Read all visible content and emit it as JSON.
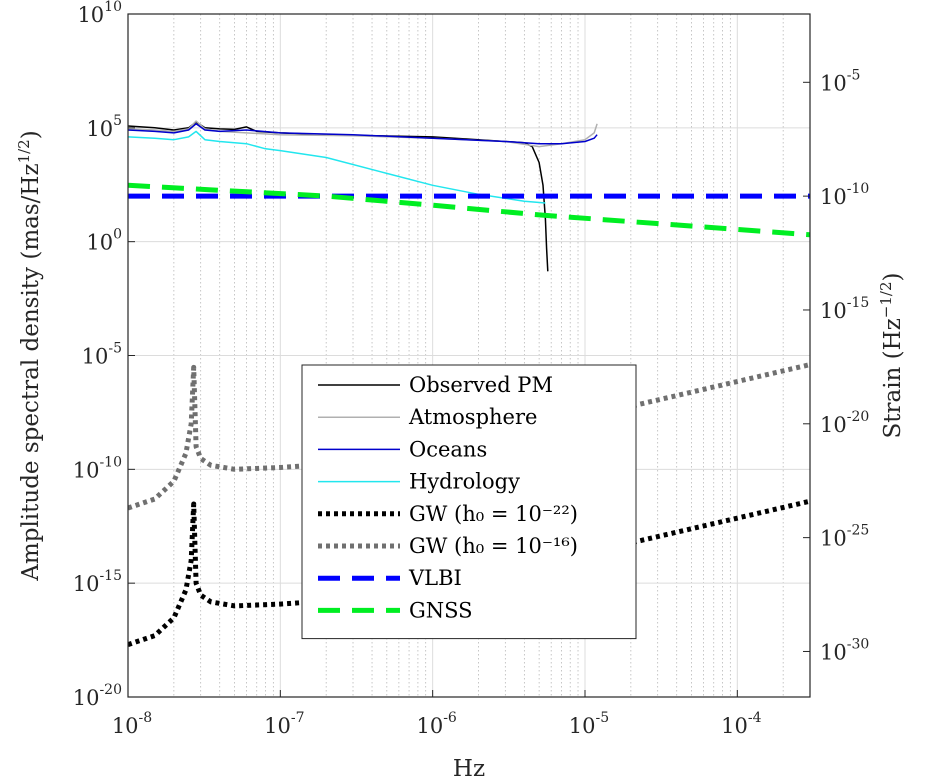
{
  "chart_data": {
    "type": "line",
    "title": "",
    "xlabel": "Hz",
    "ylabel": "Amplitude spectral density (mas/Hz^(1/2))",
    "ylabel_parts": [
      "Amplitude spectral density (mas/Hz",
      "1/2",
      ")"
    ],
    "y2label": "Strain (Hz^(-1/2))",
    "y2label_parts": [
      "Strain (Hz",
      "−1/2",
      ")"
    ],
    "x_scale": "log",
    "y_scale": "log",
    "xlim": [
      1e-08,
      0.0003
    ],
    "ylim": [
      1e-20,
      10000000000.0
    ],
    "y2lim": [
      1e-32,
      0.01
    ],
    "grid": true,
    "legend_position": "lower-center",
    "x_ticks": [
      {
        "base": "10",
        "exp": "-8",
        "value": 1e-08
      },
      {
        "base": "10",
        "exp": "-7",
        "value": 1e-07
      },
      {
        "base": "10",
        "exp": "-6",
        "value": 1e-06
      },
      {
        "base": "10",
        "exp": "-5",
        "value": 1e-05
      },
      {
        "base": "10",
        "exp": "-4",
        "value": 0.0001
      }
    ],
    "y_ticks": [
      {
        "base": "10",
        "exp": "-20",
        "value": 1e-20
      },
      {
        "base": "10",
        "exp": "-15",
        "value": 1e-15
      },
      {
        "base": "10",
        "exp": "-10",
        "value": 1e-10
      },
      {
        "base": "10",
        "exp": "-5",
        "value": 1e-05
      },
      {
        "base": "10",
        "exp": "0",
        "value": 1
      },
      {
        "base": "10",
        "exp": "5",
        "value": 100000.0
      },
      {
        "base": "10",
        "exp": "10",
        "value": 10000000000.0
      }
    ],
    "y2_ticks": [
      {
        "base": "10",
        "exp": "-30",
        "value": 1e-30
      },
      {
        "base": "10",
        "exp": "-25",
        "value": 1e-25
      },
      {
        "base": "10",
        "exp": "-20",
        "value": 1e-20
      },
      {
        "base": "10",
        "exp": "-15",
        "value": 1e-15
      },
      {
        "base": "10",
        "exp": "-10",
        "value": 1e-10
      },
      {
        "base": "10",
        "exp": "-5",
        "value": 1e-05
      }
    ],
    "series": [
      {
        "name": "Observed PM",
        "color": "#000000",
        "style": "solid",
        "width": 1.5,
        "x": [
          1e-08,
          1.5e-08,
          2e-08,
          2.5e-08,
          2.8e-08,
          3.2e-08,
          4e-08,
          5e-08,
          6e-08,
          7e-08,
          1e-07,
          2e-07,
          4e-07,
          1e-06,
          2e-06,
          3e-06,
          4e-06,
          4.5e-06,
          5e-06,
          5.3e-06,
          5.5e-06,
          5.6e-06,
          5.7e-06
        ],
        "y": [
          120000,
          100000,
          80000,
          100000,
          180000,
          100000,
          90000,
          85000,
          110000,
          70000,
          60000,
          50000,
          45000,
          40000,
          30000,
          25000,
          22000,
          15000,
          3000,
          300,
          10,
          0.5,
          0.05
        ]
      },
      {
        "name": "Atmosphere",
        "color": "#b0b0b0",
        "style": "solid",
        "width": 1.5,
        "x": [
          1e-08,
          1.5e-08,
          2e-08,
          2.5e-08,
          2.8e-08,
          3.2e-08,
          4e-08,
          6e-08,
          1e-07,
          3e-07,
          1e-06,
          3e-06,
          5e-06,
          7e-06,
          1e-05,
          1.15e-05,
          1.2e-05
        ],
        "y": [
          90000,
          80000,
          70000,
          90000,
          200000,
          90000,
          70000,
          60000,
          50000,
          45000,
          35000,
          25000,
          15000,
          20000,
          30000,
          60000,
          150000
        ]
      },
      {
        "name": "Oceans",
        "color": "#0000cc",
        "style": "solid",
        "width": 1.5,
        "x": [
          1e-08,
          1.5e-08,
          2e-08,
          2.5e-08,
          2.8e-08,
          3.2e-08,
          4e-08,
          6e-08,
          1e-07,
          3e-07,
          1e-06,
          3e-06,
          5e-06,
          7e-06,
          1e-05,
          1.15e-05,
          1.2e-05
        ],
        "y": [
          80000,
          70000,
          60000,
          80000,
          150000,
          80000,
          70000,
          80000,
          60000,
          50000,
          35000,
          25000,
          20000,
          20000,
          25000,
          35000,
          50000
        ]
      },
      {
        "name": "Hydrology",
        "color": "#22e6ee",
        "style": "solid",
        "width": 1.5,
        "x": [
          1e-08,
          1.5e-08,
          2e-08,
          2.5e-08,
          2.8e-08,
          3.2e-08,
          4e-08,
          6e-08,
          8e-08,
          1e-07,
          2e-07,
          5e-07,
          1e-06,
          2e-06,
          4e-06,
          5.5e-06
        ],
        "y": [
          40000,
          35000,
          30000,
          40000,
          70000,
          30000,
          25000,
          20000,
          12000,
          10000,
          5000,
          1000,
          300,
          120,
          60,
          50
        ]
      },
      {
        "name": "GW (h₀ = 10⁻²²)",
        "color": "#000000",
        "style": "dotted",
        "width": 5,
        "x": [
          1e-08,
          1.5e-08,
          2e-08,
          2.4e-08,
          2.6e-08,
          2.7e-08,
          2.8e-08,
          3e-08,
          3.5e-08,
          5e-08,
          1e-07,
          3e-07,
          1e-06,
          1e-05,
          0.0003
        ],
        "y": [
          2e-18,
          5e-18,
          3e-17,
          5e-16,
          1e-14,
          3e-12,
          1e-15,
          3e-16,
          1.5e-16,
          1e-16,
          1.2e-16,
          2e-16,
          4e-16,
          2e-14,
          4e-12
        ]
      },
      {
        "name": "GW (h₀ = 10⁻¹⁶)",
        "color": "#707070",
        "style": "dotted",
        "width": 5,
        "x": [
          1e-08,
          1.5e-08,
          2e-08,
          2.4e-08,
          2.6e-08,
          2.7e-08,
          2.8e-08,
          3e-08,
          3.5e-08,
          5e-08,
          1e-07,
          3e-07,
          1e-06,
          1e-05,
          0.0003
        ],
        "y": [
          2e-12,
          5e-12,
          3e-11,
          5e-10,
          1e-08,
          3e-06,
          1e-09,
          3e-10,
          1.5e-10,
          1e-10,
          1.2e-10,
          2e-10,
          4e-10,
          2e-08,
          4e-06
        ]
      },
      {
        "name": "VLBI",
        "color": "#0000ff",
        "style": "dashed",
        "width": 5,
        "x": [
          1e-08,
          0.0003
        ],
        "y": [
          100,
          100
        ]
      },
      {
        "name": "GNSS",
        "color": "#00ee22",
        "style": "dashed",
        "width": 5,
        "x": [
          1e-08,
          2e-07,
          1e-06,
          5e-06,
          0.0003
        ],
        "y": [
          300,
          100,
          40,
          15,
          2
        ]
      }
    ],
    "legend": [
      {
        "label": "Observed PM",
        "color": "#000000",
        "style": "solid"
      },
      {
        "label": "Atmosphere",
        "color": "#b0b0b0",
        "style": "solid"
      },
      {
        "label": "Oceans",
        "color": "#0000cc",
        "style": "solid"
      },
      {
        "label": "Hydrology",
        "color": "#22e6ee",
        "style": "solid"
      },
      {
        "label": "GW (h₀ = 10⁻²²)",
        "color": "#000000",
        "style": "dotted"
      },
      {
        "label": "GW (h₀ = 10⁻¹⁶)",
        "color": "#707070",
        "style": "dotted"
      },
      {
        "label": "VLBI",
        "color": "#0000ff",
        "style": "dashed"
      },
      {
        "label": "GNSS",
        "color": "#00ee22",
        "style": "dashed"
      }
    ]
  }
}
